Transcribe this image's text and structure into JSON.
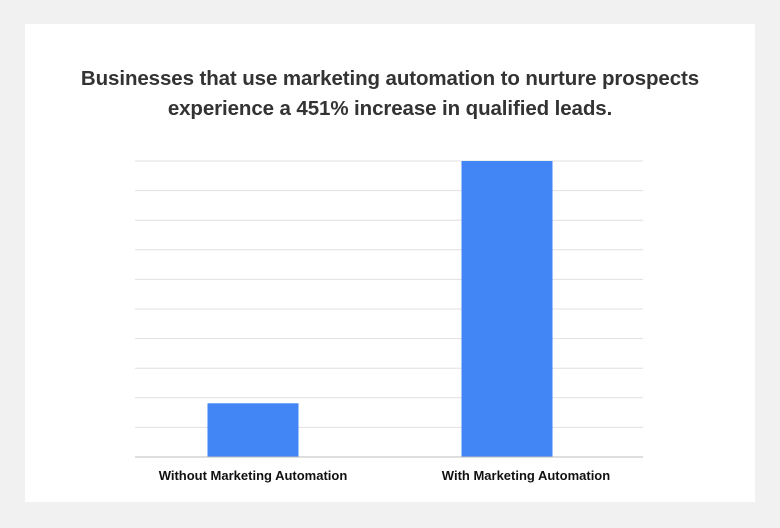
{
  "chart_data": {
    "type": "bar",
    "title_lines": [
      "Businesses that use marketing automation to nurture prospects",
      "experience a 451% increase in qualified leads."
    ],
    "categories": [
      "Without Marketing Automation",
      "With Marketing Automation"
    ],
    "values": [
      1,
      5.51
    ],
    "ylim": [
      0,
      5.51
    ],
    "grid": true,
    "legend": "none",
    "xlabel": "",
    "ylabel": "",
    "bar_color": "#4285f4",
    "grid_color": "#e0e0e0",
    "axis_color": "#bdbdbd"
  }
}
